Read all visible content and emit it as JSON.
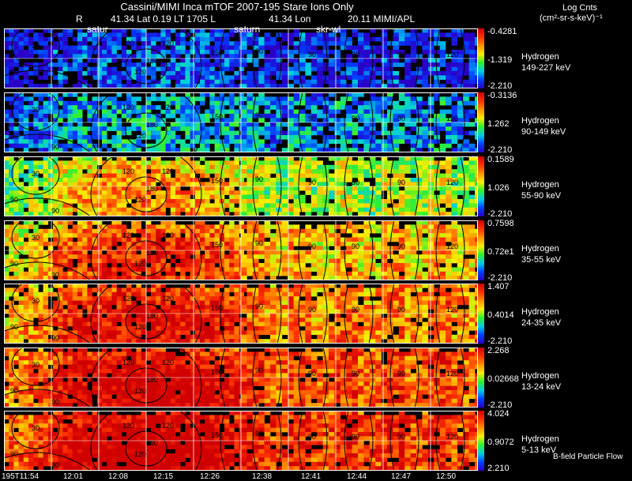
{
  "header": {
    "title": "Cassini/MIMI Inca mTOF  2007-195   Stare    Ions Only",
    "subtitle": [
      {
        "text": "R",
        "pos": "a"
      },
      {
        "text": "41.34 Lat 0.19 LT 1705 L",
        "pos": "b"
      },
      {
        "text": "41.34 Lon",
        "pos": "c"
      },
      {
        "text": "20.11   MIMI/APL",
        "pos": "d"
      }
    ],
    "overlay_labels": [
      "satur",
      "saturn",
      "skr-wl"
    ]
  },
  "colorbar_units": {
    "line1": "Log Cnts",
    "line2": "(cm²-sr-s-keV)⁻¹"
  },
  "panels": [
    {
      "species": "Hydrogen",
      "energy": "149-227 keV",
      "max": "-0.4281",
      "mid": "-1.319",
      "min": "-2.210",
      "level": 0.08
    },
    {
      "species": "Hydrogen",
      "energy": "90-149 keV",
      "max": "-0.3136",
      "mid": "1.262",
      "min": "-2.210",
      "level": 0.22
    },
    {
      "species": "Hydrogen",
      "energy": "55-90 keV",
      "max": "0.1589",
      "mid": "1.026",
      "min": "-2.210",
      "level": 0.5
    },
    {
      "species": "Hydrogen",
      "energy": "35-55 keV",
      "max": "0.7598",
      "mid": "0.72e1",
      "min": "-2.210",
      "level": 0.66
    },
    {
      "species": "Hydrogen",
      "energy": "24-35 keV",
      "max": "1.407",
      "mid": "0.4014",
      "min": "-2.210",
      "level": 0.74
    },
    {
      "species": "Hydrogen",
      "energy": "13-24 keV",
      "max": "2.268",
      "mid": "0.02668",
      "min": "-2.210",
      "level": 0.82
    },
    {
      "species": "Hydrogen",
      "energy": "5-13 keV",
      "max": "4.024",
      "mid": "0.9072",
      "min": "2.210",
      "level": 0.86
    }
  ],
  "contour_labels": [
    "30",
    "60",
    "90",
    "120",
    "150",
    "180"
  ],
  "time_ticks": [
    "195T11:54",
    "12:01",
    "12:08",
    "12:15",
    "12:26",
    "12:38",
    "12:41",
    "12:44",
    "12:47",
    "12:50"
  ],
  "footer_note": "B-field Particle Flow",
  "colors": {
    "background": "#000000",
    "grid": "#ffffff",
    "contour": "#000000"
  }
}
